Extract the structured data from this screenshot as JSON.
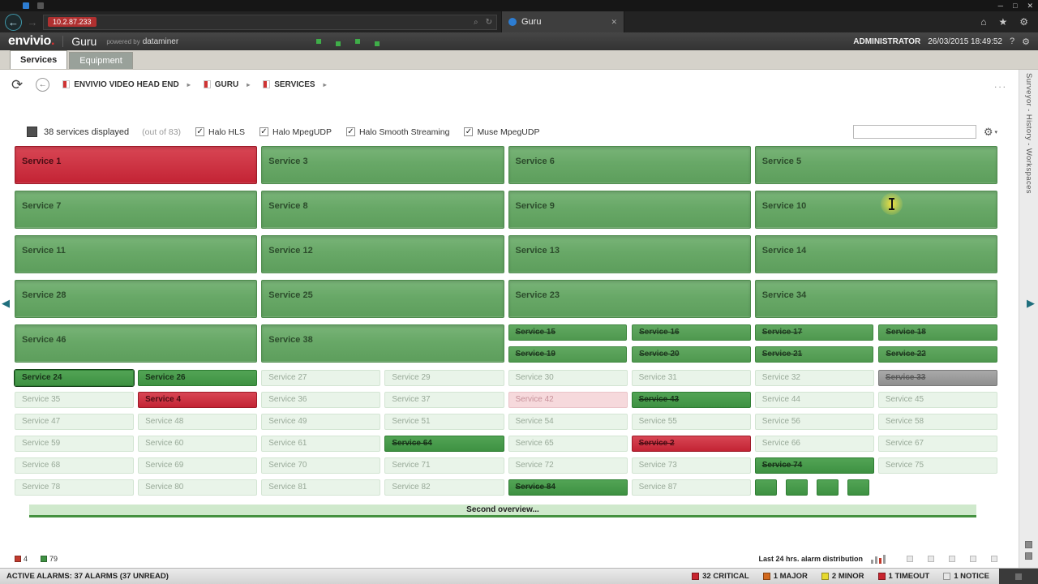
{
  "browser": {
    "window_controls": [
      "─",
      "□",
      "✕"
    ],
    "back_icon": "←",
    "forward_icon": "→",
    "url_highlight": "10.2.87.233",
    "url_icons": [
      "⌕",
      "↻"
    ],
    "tab": {
      "title": "Guru",
      "close": "✕"
    },
    "toolbar_icons": [
      "⌂",
      "★",
      "⚙"
    ]
  },
  "header": {
    "logo_text": "envivio",
    "logo_dot": ".",
    "app_title": "Guru",
    "powered_by_prefix": "powered by",
    "powered_by_brand": "dataminer",
    "user": "ADMINISTRATOR",
    "datetime": "26/03/2015 18:49:52",
    "help_icon": "?",
    "settings_icon": "⚙"
  },
  "tabs": [
    {
      "label": "Services",
      "active": true
    },
    {
      "label": "Equipment",
      "active": false
    }
  ],
  "toolbar": {
    "refresh_icon": "⟳",
    "back_icon": "←",
    "breadcrumb_arrow": "▸",
    "ellipsis": "...",
    "breadcrumbs": [
      {
        "label": "ENVIVIO VIDEO HEAD END"
      },
      {
        "label": "GURU"
      },
      {
        "label": "SERVICES"
      }
    ]
  },
  "sidebar": {
    "vertical_label": "Surveyor - History - Workspaces"
  },
  "nav": {
    "left_arrow": "◀",
    "right_arrow": "▶"
  },
  "filters": {
    "displayed_text": "38 services displayed",
    "out_of_text": "(out of 83)",
    "checkbox_glyph": "✓",
    "checkboxes": [
      "Halo HLS",
      "Halo MpegUDP",
      "Halo Smooth Streaming",
      "Muse MpegUDP"
    ],
    "search_value": "",
    "settings_icon": "⚙",
    "settings_arrow": "▾"
  },
  "grid": {
    "large_rows": [
      [
        {
          "label": "Service 1",
          "state": "critical"
        },
        {
          "label": "Service 3",
          "state": "ok"
        },
        {
          "label": "Service 6",
          "state": "ok"
        },
        {
          "label": "Service 5",
          "state": "ok"
        }
      ],
      [
        {
          "label": "Service 7",
          "state": "ok"
        },
        {
          "label": "Service 8",
          "state": "ok"
        },
        {
          "label": "Service 9",
          "state": "ok"
        },
        {
          "label": "Service 10",
          "state": "ok"
        }
      ],
      [
        {
          "label": "Service 11",
          "state": "ok"
        },
        {
          "label": "Service 12",
          "state": "ok"
        },
        {
          "label": "Service 13",
          "state": "ok"
        },
        {
          "label": "Service 14",
          "state": "ok"
        }
      ],
      [
        {
          "label": "Service 28",
          "state": "ok"
        },
        {
          "label": "Service 25",
          "state": "ok"
        },
        {
          "label": "Service 23",
          "state": "ok"
        },
        {
          "label": "Service 34",
          "state": "ok"
        }
      ]
    ],
    "row5": {
      "large": [
        {
          "label": "Service 46",
          "state": "ok"
        },
        {
          "label": "Service 38",
          "state": "ok"
        }
      ],
      "half_groups": [
        [
          {
            "label": "Service 15",
            "state": "mid",
            "masked": true
          },
          {
            "label": "Service 16",
            "state": "mid",
            "masked": true
          },
          {
            "label": "Service 19",
            "state": "mid",
            "masked": true
          },
          {
            "label": "Service 20",
            "state": "mid",
            "masked": true
          }
        ],
        [
          {
            "label": "Service 17",
            "state": "mid",
            "masked": true
          },
          {
            "label": "Service 18",
            "state": "mid",
            "masked": true
          },
          {
            "label": "Service 21",
            "state": "mid",
            "masked": true
          },
          {
            "label": "Service 22",
            "state": "mid",
            "masked": true
          }
        ]
      ]
    },
    "small_rows": [
      [
        {
          "label": "Service 24",
          "state": "dark",
          "selected": true
        },
        {
          "label": "Service 26",
          "state": "dark"
        },
        {
          "label": "Service 27",
          "state": "light"
        },
        {
          "label": "Service 29",
          "state": "light"
        },
        {
          "label": "Service 30",
          "state": "light"
        },
        {
          "label": "Service 31",
          "state": "light"
        },
        {
          "label": "Service 32",
          "state": "light"
        },
        {
          "label": "Service 33",
          "state": "gray",
          "masked": true
        }
      ],
      [
        {
          "label": "Service 35",
          "state": "light"
        },
        {
          "label": "Service 4",
          "state": "critical"
        },
        {
          "label": "Service 36",
          "state": "light"
        },
        {
          "label": "Service 37",
          "state": "light"
        },
        {
          "label": "Service 42",
          "state": "pink"
        },
        {
          "label": "Service 43",
          "state": "dark",
          "masked": true
        },
        {
          "label": "Service 44",
          "state": "light"
        },
        {
          "label": "Service 45",
          "state": "light"
        }
      ],
      [
        {
          "label": "Service 47",
          "state": "light"
        },
        {
          "label": "Service 48",
          "state": "light"
        },
        {
          "label": "Service 49",
          "state": "light"
        },
        {
          "label": "Service 51",
          "state": "light"
        },
        {
          "label": "Service 54",
          "state": "light"
        },
        {
          "label": "Service 55",
          "state": "light"
        },
        {
          "label": "Service 56",
          "state": "light"
        },
        {
          "label": "Service 58",
          "state": "light"
        }
      ],
      [
        {
          "label": "Service 59",
          "state": "light"
        },
        {
          "label": "Service 60",
          "state": "light"
        },
        {
          "label": "Service 61",
          "state": "light"
        },
        {
          "label": "Service 64",
          "state": "dark",
          "masked": true
        },
        {
          "label": "Service 65",
          "state": "light"
        },
        {
          "label": "Service 2",
          "state": "critical",
          "masked": true
        },
        {
          "label": "Service 66",
          "state": "light"
        },
        {
          "label": "Service 67",
          "state": "light"
        }
      ],
      [
        {
          "label": "Service 68",
          "state": "light"
        },
        {
          "label": "Service 69",
          "state": "light"
        },
        {
          "label": "Service 70",
          "state": "light"
        },
        {
          "label": "Service 71",
          "state": "light"
        },
        {
          "label": "Service 72",
          "state": "light"
        },
        {
          "label": "Service 73",
          "state": "light"
        },
        {
          "label": "Service 74",
          "state": "dark",
          "masked": true
        },
        {
          "label": "Service 75",
          "state": "light"
        }
      ],
      [
        {
          "label": "Service 78",
          "state": "light"
        },
        {
          "label": "Service 80",
          "state": "light"
        },
        {
          "label": "Service 81",
          "state": "light"
        },
        {
          "label": "Service 82",
          "state": "light"
        },
        {
          "label": "Service 84",
          "state": "dark",
          "masked": true
        },
        {
          "label": "Service 87",
          "state": "light"
        },
        {
          "type": "minis",
          "count": 4
        },
        {
          "type": "empty"
        }
      ]
    ],
    "overview_label": "Second overview..."
  },
  "footer": {
    "critical_count": "4",
    "ok_count": "79",
    "chart_label": "Last 24 hrs. alarm distribution"
  },
  "statusbar": {
    "active_alarms": "ACTIVE ALARMS: 37 ALARMS (37 UNREAD)",
    "items": [
      {
        "label": "32 CRITICAL",
        "color": "#c8242e"
      },
      {
        "label": "1 MAJOR",
        "color": "#d2691e"
      },
      {
        "label": "2 MINOR",
        "color": "#e6d92e"
      },
      {
        "label": "1 TIMEOUT",
        "color": "#c8242e"
      },
      {
        "label": "1 NOTICE",
        "color": "#e6e6e6"
      }
    ]
  }
}
